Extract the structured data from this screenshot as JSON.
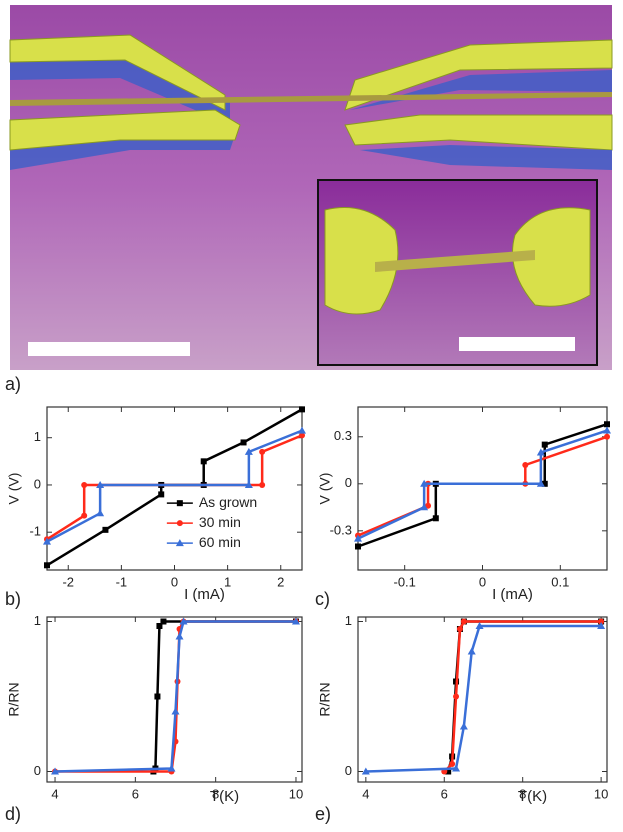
{
  "image": {
    "label": "a)"
  },
  "chart_data": [
    {
      "type": "line",
      "label": "b)",
      "x_label": "I (mA)",
      "y_label": "V (V)",
      "xlim": [
        -2.4,
        2.4
      ],
      "ylim": [
        -1.8,
        1.65
      ],
      "xticks": [
        -2,
        -1,
        0,
        1,
        2
      ],
      "yticks": [
        -1,
        0,
        1
      ],
      "legend": "lower right",
      "series": [
        {
          "name": "As grown",
          "color": "#000000",
          "marker": "square",
          "x": [
            -2.4,
            -1.3,
            -0.25,
            -0.25,
            0.55,
            0.55,
            1.3,
            2.4
          ],
          "values": [
            -1.7,
            -0.95,
            -0.2,
            0,
            0,
            0.5,
            0.9,
            1.6
          ]
        },
        {
          "name": "30 min",
          "color": "#ff2a1a",
          "marker": "circle",
          "x": [
            -2.4,
            -1.7,
            -1.7,
            1.65,
            1.65,
            2.4
          ],
          "values": [
            -1.15,
            -0.65,
            0,
            0,
            0.7,
            1.05
          ]
        },
        {
          "name": "60 min",
          "color": "#3a6fd8",
          "marker": "triangle",
          "x": [
            -2.4,
            -1.4,
            -1.4,
            1.4,
            1.4,
            2.4
          ],
          "values": [
            -1.2,
            -0.6,
            0,
            0,
            0.7,
            1.15
          ]
        }
      ]
    },
    {
      "type": "line",
      "label": "c)",
      "x_label": "I (mA)",
      "y_label": "V (V)",
      "xlim": [
        -0.16,
        0.16
      ],
      "ylim": [
        -0.55,
        0.49
      ],
      "xticks": [
        -0.1,
        0,
        0.1
      ],
      "yticks": [
        -0.3,
        0,
        0.3
      ],
      "series": [
        {
          "color": "#000000",
          "marker": "square",
          "x": [
            -0.16,
            -0.06,
            -0.06,
            0.08,
            0.08,
            0.16
          ],
          "values": [
            -0.4,
            -0.22,
            0,
            0,
            0.25,
            0.38
          ]
        },
        {
          "color": "#ff2a1a",
          "marker": "circle",
          "x": [
            -0.16,
            -0.07,
            -0.07,
            0.055,
            0.055,
            0.16
          ],
          "values": [
            -0.33,
            -0.14,
            0,
            0,
            0.12,
            0.3
          ]
        },
        {
          "color": "#3a6fd8",
          "marker": "triangle",
          "x": [
            -0.16,
            -0.075,
            -0.075,
            0.075,
            0.075,
            0.16
          ],
          "values": [
            -0.35,
            -0.15,
            0,
            0,
            0.2,
            0.34
          ]
        }
      ]
    },
    {
      "type": "line",
      "label": "d)",
      "x_label": "T(K)",
      "y_label": "R/RN",
      "xlim": [
        3.8,
        10.15
      ],
      "ylim": [
        -0.07,
        1.03
      ],
      "xticks": [
        4,
        6,
        8,
        10
      ],
      "yticks": [
        0,
        1
      ],
      "series": [
        {
          "color": "#000000",
          "marker": "square",
          "x": [
            6.45,
            6.5,
            6.55,
            6.6,
            6.7,
            10
          ],
          "values": [
            0,
            0.02,
            0.5,
            0.97,
            1,
            1
          ]
        },
        {
          "color": "#ff2a1a",
          "marker": "circle",
          "x": [
            4,
            6.9,
            7,
            7.05,
            7.1,
            7.2,
            10
          ],
          "values": [
            0,
            0,
            0.2,
            0.6,
            0.95,
            1,
            1
          ]
        },
        {
          "color": "#3a6fd8",
          "marker": "triangle",
          "x": [
            4,
            6.9,
            7,
            7.1,
            7.2,
            10
          ],
          "values": [
            0,
            0.02,
            0.4,
            0.9,
            1,
            1
          ]
        }
      ]
    },
    {
      "type": "line",
      "label": "e)",
      "x_label": "T(K)",
      "y_label": "R/RN",
      "xlim": [
        3.8,
        10.15
      ],
      "ylim": [
        -0.07,
        1.03
      ],
      "xticks": [
        4,
        6,
        8,
        10
      ],
      "yticks": [
        0,
        1
      ],
      "series": [
        {
          "color": "#000000",
          "marker": "square",
          "x": [
            6.1,
            6.2,
            6.3,
            6.4,
            6.5,
            10
          ],
          "values": [
            0,
            0.1,
            0.6,
            0.95,
            1,
            1
          ]
        },
        {
          "color": "#ff2a1a",
          "marker": "circle",
          "x": [
            6,
            6.2,
            6.3,
            6.4,
            6.5,
            10
          ],
          "values": [
            0,
            0.05,
            0.5,
            0.95,
            1,
            1
          ]
        },
        {
          "color": "#3a6fd8",
          "marker": "triangle",
          "x": [
            4,
            6.3,
            6.5,
            6.7,
            6.9,
            10
          ],
          "values": [
            0,
            0.02,
            0.3,
            0.8,
            0.97,
            0.97
          ]
        }
      ]
    }
  ]
}
